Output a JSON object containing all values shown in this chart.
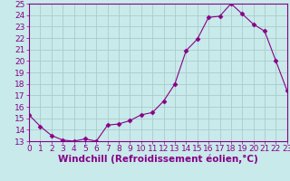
{
  "x": [
    0,
    1,
    2,
    3,
    4,
    5,
    6,
    7,
    8,
    9,
    10,
    11,
    12,
    13,
    14,
    15,
    16,
    17,
    18,
    19,
    20,
    21,
    22,
    23
  ],
  "y": [
    15.3,
    14.3,
    13.5,
    13.1,
    13.0,
    13.2,
    13.0,
    14.4,
    14.5,
    14.8,
    15.3,
    15.5,
    16.5,
    18.0,
    20.9,
    21.9,
    23.8,
    23.9,
    25.0,
    24.1,
    23.2,
    22.6,
    20.0,
    17.4
  ],
  "xlim": [
    0,
    23
  ],
  "ylim": [
    13,
    25
  ],
  "yticks": [
    13,
    14,
    15,
    16,
    17,
    18,
    19,
    20,
    21,
    22,
    23,
    24,
    25
  ],
  "xticks": [
    0,
    1,
    2,
    3,
    4,
    5,
    6,
    7,
    8,
    9,
    10,
    11,
    12,
    13,
    14,
    15,
    16,
    17,
    18,
    19,
    20,
    21,
    22,
    23
  ],
  "xlabel": "Windchill (Refroidissement éolien,°C)",
  "line_color": "#880088",
  "marker": "D",
  "marker_size": 2.5,
  "bg_color": "#c8eaea",
  "grid_color": "#aacccc",
  "tick_label_fontsize": 6.5,
  "xlabel_fontsize": 7.5
}
